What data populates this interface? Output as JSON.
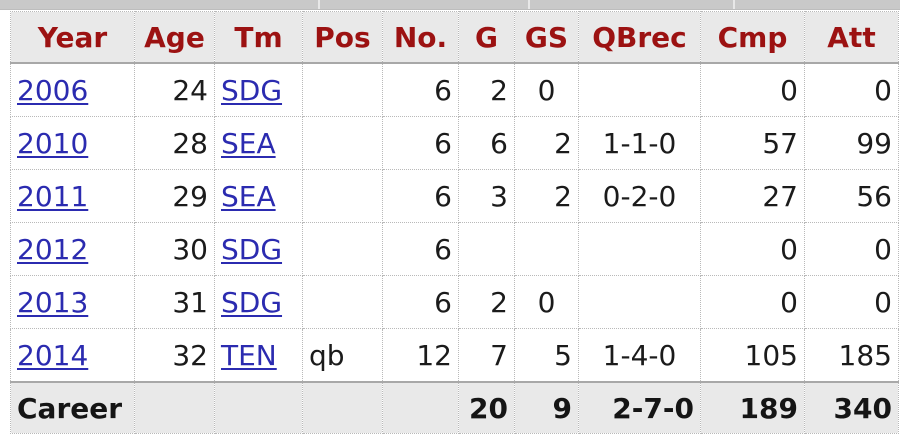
{
  "colors": {
    "header_text": "#9c1212",
    "link": "#2b2bb0",
    "header_bg": "#e9e9e9",
    "border": "#b9b9b9"
  },
  "table": {
    "headers": [
      "Year",
      "Age",
      "Tm",
      "Pos",
      "No.",
      "G",
      "GS",
      "QBrec",
      "Cmp",
      "Att"
    ],
    "rows": [
      {
        "year": "2006",
        "age": "24",
        "tm": "SDG",
        "pos": "",
        "no": "6",
        "g": "2",
        "gs": "0",
        "qbrec": "",
        "cmp": "0",
        "att": "0"
      },
      {
        "year": "2010",
        "age": "28",
        "tm": "SEA",
        "pos": "",
        "no": "6",
        "g": "6",
        "gs": "2",
        "qbrec": "1-1-0",
        "cmp": "57",
        "att": "99"
      },
      {
        "year": "2011",
        "age": "29",
        "tm": "SEA",
        "pos": "",
        "no": "6",
        "g": "3",
        "gs": "2",
        "qbrec": "0-2-0",
        "cmp": "27",
        "att": "56"
      },
      {
        "year": "2012",
        "age": "30",
        "tm": "SDG",
        "pos": "",
        "no": "6",
        "g": "",
        "gs": "",
        "qbrec": "",
        "cmp": "0",
        "att": "0"
      },
      {
        "year": "2013",
        "age": "31",
        "tm": "SDG",
        "pos": "",
        "no": "6",
        "g": "2",
        "gs": "0",
        "qbrec": "",
        "cmp": "0",
        "att": "0"
      },
      {
        "year": "2014",
        "age": "32",
        "tm": "TEN",
        "pos": "qb",
        "no": "12",
        "g": "7",
        "gs": "5",
        "qbrec": "1-4-0",
        "cmp": "105",
        "att": "185"
      }
    ],
    "footer": {
      "label": "Career",
      "age": "",
      "tm": "",
      "pos": "",
      "no": "",
      "g": "20",
      "gs": "9",
      "qbrec": "2-7-0",
      "cmp": "189",
      "att": "340"
    }
  }
}
